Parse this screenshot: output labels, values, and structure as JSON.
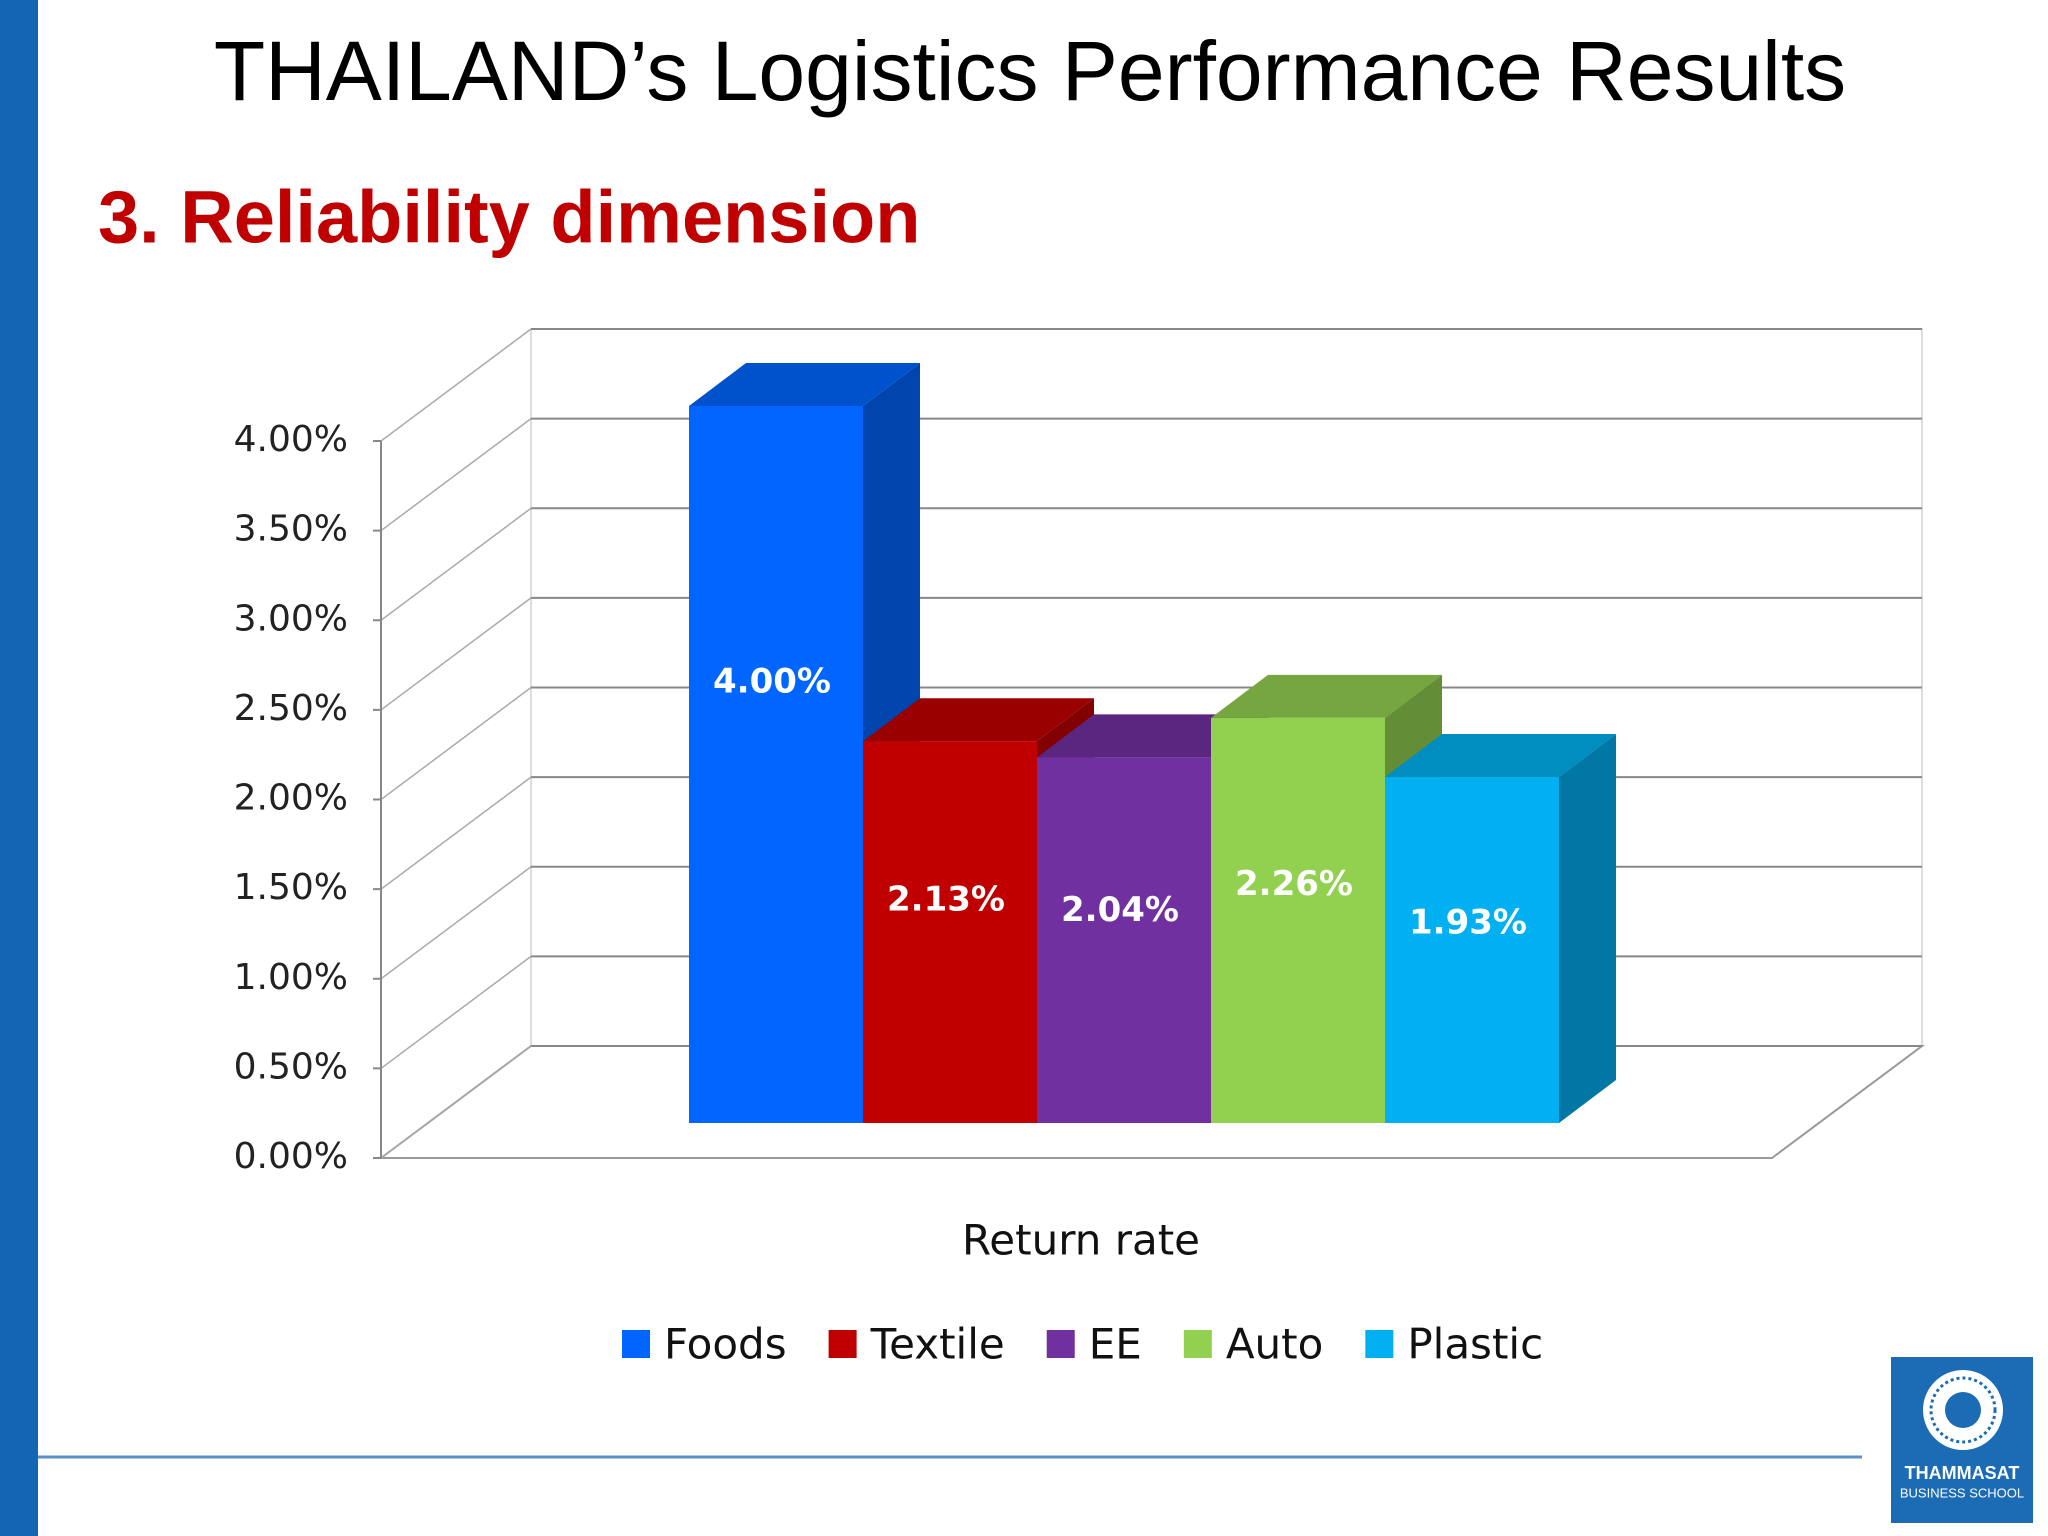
{
  "title": "THAILAND’s Logistics Performance Results",
  "subtitle": "3. Reliability dimension",
  "chart_data": {
    "type": "bar",
    "categories": [
      "Return rate"
    ],
    "series": [
      {
        "name": "Foods",
        "color": "#0066ff",
        "values": [
          4.0
        ],
        "value_labels": [
          "4.00%"
        ]
      },
      {
        "name": "Textile",
        "color": "#c00000",
        "values": [
          2.13
        ],
        "value_labels": [
          "2.13%"
        ]
      },
      {
        "name": "EE",
        "color": "#7030a0",
        "values": [
          2.04
        ],
        "value_labels": [
          "2.04%"
        ]
      },
      {
        "name": "Auto",
        "color": "#92d050",
        "values": [
          2.26
        ],
        "value_labels": [
          "2.26%"
        ]
      },
      {
        "name": "Plastic",
        "color": "#00b0f0",
        "values": [
          1.93
        ],
        "value_labels": [
          "1.93%"
        ]
      }
    ],
    "ylim": [
      0,
      4
    ],
    "yticks": [
      {
        "value": 0,
        "label": "0.00%"
      },
      {
        "value": 0.5,
        "label": "0.50%"
      },
      {
        "value": 1,
        "label": "1.00%"
      },
      {
        "value": 1.5,
        "label": "1.50%"
      },
      {
        "value": 2,
        "label": "2.00%"
      },
      {
        "value": 2.5,
        "label": "2.50%"
      },
      {
        "value": 3,
        "label": "3.00%"
      },
      {
        "value": 3.5,
        "label": "3.50%"
      },
      {
        "value": 4,
        "label": "4.00%"
      }
    ],
    "grid": true,
    "legend": "bottom"
  },
  "logo": {
    "name": "THAMMASAT",
    "subtitle": "BUSINESS SCHOOL"
  }
}
